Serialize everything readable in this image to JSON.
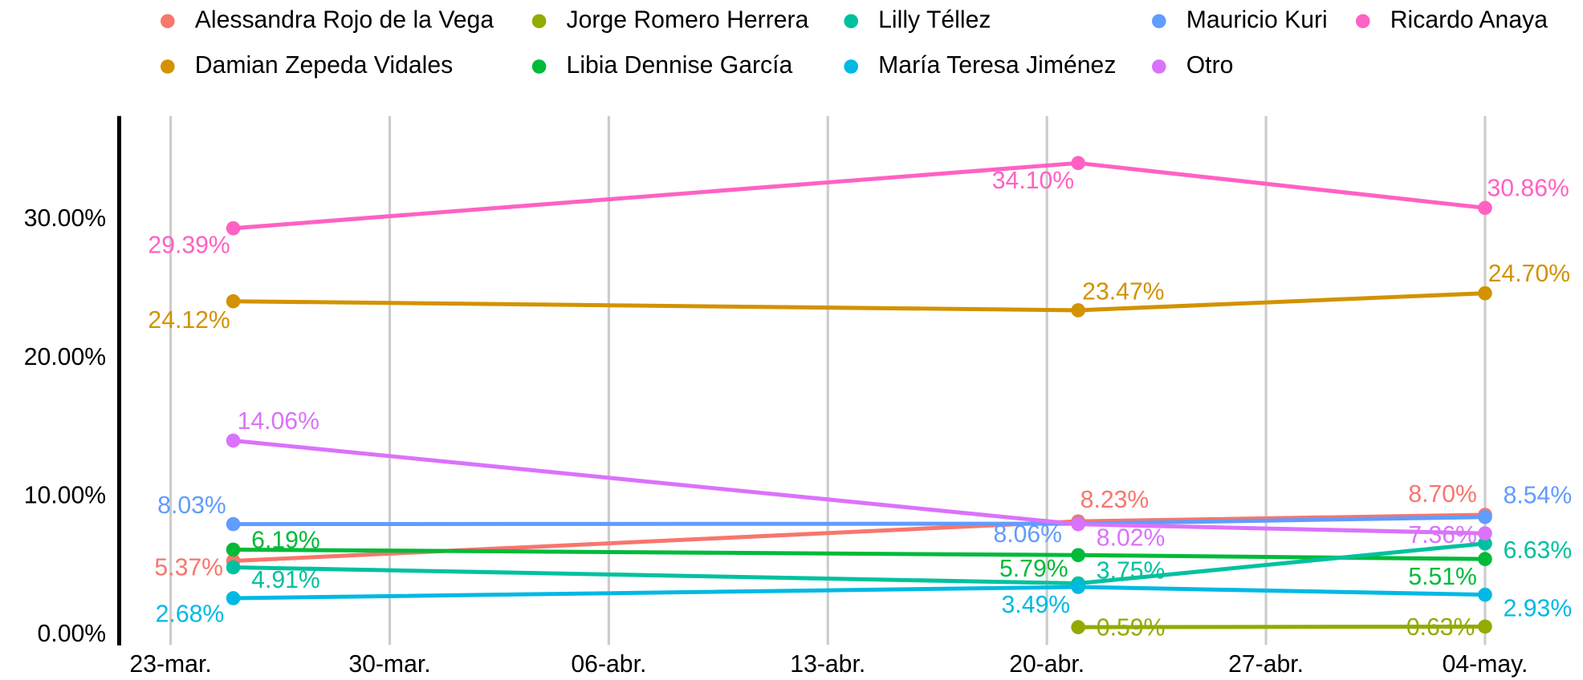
{
  "chart_data": {
    "type": "line",
    "x": [
      "03-25",
      "04-21",
      "05-04"
    ],
    "xlim": [
      "03-21",
      "05-07"
    ],
    "xticks": [
      {
        "value": "03-23",
        "label": "23-mar."
      },
      {
        "value": "03-30",
        "label": "30-mar."
      },
      {
        "value": "04-06",
        "label": "06-abr."
      },
      {
        "value": "04-13",
        "label": "13-abr."
      },
      {
        "value": "04-20",
        "label": "20-abr."
      },
      {
        "value": "04-27",
        "label": "27-abr."
      },
      {
        "value": "05-04",
        "label": "04-may."
      }
    ],
    "ylim": [
      -0.7,
      37.5
    ],
    "yticks": [
      {
        "value": 0,
        "label": "0.00%"
      },
      {
        "value": 10,
        "label": "10.00%"
      },
      {
        "value": 20,
        "label": "20.00%"
      },
      {
        "value": 30,
        "label": "30.00%"
      }
    ],
    "grid": "x",
    "legend": "top",
    "series": [
      {
        "name": "Alessandra Rojo de la Vega",
        "color": "#F8766D",
        "values": [
          5.37,
          8.23,
          8.7
        ],
        "value_labels": [
          "5.37%",
          "8.23%",
          "8.70%"
        ]
      },
      {
        "name": "Damian Zepeda Vidales",
        "color": "#D39200",
        "values": [
          24.12,
          23.47,
          24.7
        ],
        "value_labels": [
          "24.12%",
          "23.47%",
          "24.70%"
        ]
      },
      {
        "name": "Jorge Romero Herrera",
        "color": "#93AA00",
        "values": [
          null,
          0.59,
          0.63
        ],
        "value_labels": [
          null,
          "0.59%",
          "0.63%"
        ]
      },
      {
        "name": "Libia Dennise García",
        "color": "#00BA38",
        "values": [
          6.19,
          5.79,
          5.51
        ],
        "value_labels": [
          "6.19%",
          "5.79%",
          "5.51%"
        ]
      },
      {
        "name": "Lilly Téllez",
        "color": "#00C19F",
        "values": [
          4.91,
          3.75,
          6.63
        ],
        "value_labels": [
          "4.91%",
          "3.75%",
          "6.63%"
        ]
      },
      {
        "name": "María Teresa Jiménez",
        "color": "#00B9E3",
        "values": [
          2.68,
          3.49,
          2.93
        ],
        "value_labels": [
          "2.68%",
          "3.49%",
          "2.93%"
        ]
      },
      {
        "name": "Mauricio Kuri",
        "color": "#619CFF",
        "values": [
          8.03,
          8.06,
          8.54
        ],
        "value_labels": [
          "8.03%",
          "8.06%",
          "8.54%"
        ]
      },
      {
        "name": "Otro",
        "color": "#DB72FB",
        "values": [
          14.06,
          8.02,
          7.36
        ],
        "value_labels": [
          "14.06%",
          "8.02%",
          "7.36%"
        ]
      },
      {
        "name": "Ricardo Anaya",
        "color": "#FF61C3",
        "values": [
          29.39,
          34.1,
          30.86
        ],
        "value_labels": [
          "29.39%",
          "34.10%",
          "30.86%"
        ]
      }
    ]
  }
}
